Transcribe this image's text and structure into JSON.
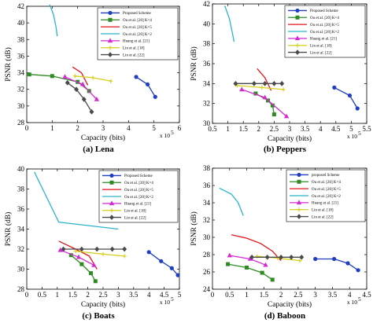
{
  "colors": {
    "proposed": "#1f3fbf",
    "ou_k4": "#2e8b22",
    "ou_k5": "#e0161b",
    "ou_k2": "#2bb5cc",
    "huang": "#d42ad4",
    "lin18": "#d6cf1c",
    "lin22": "#4a4a4a"
  },
  "chart_data": [
    {
      "type": "line",
      "caption_label": "(a)",
      "caption_name": "Lena",
      "xlabel": "Capacity (bits)",
      "ylabel": "PSNR (dB)",
      "x_multiplier": "x 10",
      "x_exponent": "5",
      "xlim": [
        0,
        6
      ],
      "ylim": [
        28,
        42
      ],
      "xticks": [
        0,
        1,
        2,
        3,
        4,
        5,
        6
      ],
      "yticks": [
        28,
        30,
        32,
        34,
        36,
        38,
        40,
        42
      ],
      "legend_position": "top-right",
      "series": [
        {
          "name": "Proposed Scheme",
          "color_key": "proposed",
          "marker": "circle",
          "x": [
            4.3,
            4.75,
            5.05
          ],
          "y": [
            33.5,
            32.6,
            31.1
          ]
        },
        {
          "name": "Ou et al. [20] K=4",
          "color_key": "ou_k4",
          "marker": "square",
          "x": [
            0.1,
            1.0,
            2.0,
            2.45
          ],
          "y": [
            33.8,
            33.6,
            32.9,
            31.8
          ]
        },
        {
          "name": "Ou et al. [20] K=5",
          "color_key": "ou_k5",
          "marker": "none",
          "x": [
            1.8,
            2.15,
            2.4
          ],
          "y": [
            34.7,
            34.0,
            32.5
          ]
        },
        {
          "name": "Ou et al. [20] K=2",
          "color_key": "ou_k2",
          "marker": "none",
          "x": [
            0.9,
            1.05,
            1.15,
            1.2
          ],
          "y": [
            42.2,
            41.0,
            39.5,
            38.4
          ]
        },
        {
          "name": "Huang et al. [21]",
          "color_key": "huang",
          "marker": "triangle",
          "x": [
            1.5,
            2.2,
            2.75
          ],
          "y": [
            33.5,
            32.6,
            30.8
          ]
        },
        {
          "name": "Lin et al. [18]",
          "color_key": "lin18",
          "marker": "plus",
          "x": [
            1.9,
            2.6,
            3.3
          ],
          "y": [
            33.6,
            33.4,
            33.0
          ]
        },
        {
          "name": "Lin et al. [22]",
          "color_key": "lin22",
          "marker": "diamond",
          "x": [
            1.6,
            1.95,
            2.25,
            2.55
          ],
          "y": [
            32.8,
            32.0,
            30.8,
            29.3
          ]
        }
      ]
    },
    {
      "type": "line",
      "caption_label": "(b)",
      "caption_name": "Peppers",
      "xlabel": "Capacity (bits)",
      "ylabel": "PSNR (dB)",
      "x_multiplier": "x 10",
      "x_exponent": "5",
      "xlim": [
        0.5,
        5.5
      ],
      "ylim": [
        30,
        42
      ],
      "xticks": [
        0.5,
        1,
        1.5,
        2,
        2.5,
        3,
        3.5,
        4,
        4.5,
        5,
        5.5
      ],
      "yticks": [
        30,
        32,
        34,
        36,
        38,
        40,
        42
      ],
      "legend_position": "top-right",
      "series": [
        {
          "name": "Proposed Scheme",
          "color_key": "proposed",
          "marker": "circle",
          "x": [
            4.45,
            4.95,
            5.2
          ],
          "y": [
            33.6,
            32.8,
            31.5
          ]
        },
        {
          "name": "Ou et al. [20] K=4",
          "color_key": "ou_k4",
          "marker": "square",
          "x": [
            1.9,
            2.3,
            2.45,
            2.5
          ],
          "y": [
            33.0,
            32.3,
            31.8,
            30.9
          ]
        },
        {
          "name": "Ou et al. [20] K=5",
          "color_key": "ou_k5",
          "marker": "none",
          "x": [
            1.95,
            2.2,
            2.4
          ],
          "y": [
            35.5,
            34.6,
            33.3
          ]
        },
        {
          "name": "Ou et al. [20] K=2",
          "color_key": "ou_k2",
          "marker": "none",
          "x": [
            0.9,
            1.05,
            1.15,
            1.2
          ],
          "y": [
            41.8,
            40.5,
            39.0,
            38.2
          ]
        },
        {
          "name": "Huang et al. [21]",
          "color_key": "huang",
          "marker": "triangle",
          "x": [
            1.45,
            2.2,
            2.9
          ],
          "y": [
            33.4,
            32.6,
            30.7
          ]
        },
        {
          "name": "Lin et al. [18]",
          "color_key": "lin18",
          "marker": "plus",
          "x": [
            1.3,
            2.1,
            2.8
          ],
          "y": [
            33.8,
            33.6,
            33.4
          ]
        },
        {
          "name": "Lin et al. [22]",
          "color_key": "lin22",
          "marker": "diamond",
          "x": [
            1.25,
            1.85,
            2.2,
            2.5,
            2.75
          ],
          "y": [
            34.0,
            34.0,
            34.0,
            34.0,
            34.0
          ]
        }
      ]
    },
    {
      "type": "line",
      "caption_label": "(c)",
      "caption_name": "Boats",
      "xlabel": "Capacity (bits)",
      "ylabel": "PSNR (dB)",
      "x_multiplier": "x 10",
      "x_exponent": "5",
      "xlim": [
        0,
        5
      ],
      "ylim": [
        28,
        40
      ],
      "xticks": [
        0,
        0.5,
        1,
        1.5,
        2,
        2.5,
        3,
        3.5,
        4,
        4.5,
        5
      ],
      "yticks": [
        28,
        30,
        32,
        34,
        36,
        38,
        40
      ],
      "legend_position": "top-right",
      "series": [
        {
          "name": "Proposed Scheme",
          "color_key": "proposed",
          "marker": "circle",
          "x": [
            4.0,
            4.4,
            4.75,
            4.95
          ],
          "y": [
            31.7,
            30.8,
            30.1,
            29.4
          ]
        },
        {
          "name": "Ou et al. [20] K=4",
          "color_key": "ou_k4",
          "marker": "square",
          "x": [
            1.45,
            1.8,
            2.1,
            2.25
          ],
          "y": [
            31.4,
            30.5,
            29.6,
            28.8
          ]
        },
        {
          "name": "Ou et al. [20] K=5",
          "color_key": "ou_k5",
          "marker": "none",
          "x": [
            1.05,
            1.6,
            2.05,
            2.3
          ],
          "y": [
            32.8,
            32.0,
            31.3,
            30.0
          ]
        },
        {
          "name": "Ou et al. [20] K=2",
          "color_key": "ou_k2",
          "marker": "none",
          "x": [
            0.25,
            0.6,
            1.05,
            3.0
          ],
          "y": [
            39.7,
            37.5,
            34.7,
            34.0
          ]
        },
        {
          "name": "Huang et al. [21]",
          "color_key": "huang",
          "marker": "triangle",
          "x": [
            1.1,
            1.7,
            2.2
          ],
          "y": [
            31.9,
            31.2,
            30.4
          ]
        },
        {
          "name": "Lin et al. [18]",
          "color_key": "lin18",
          "marker": "plus",
          "x": [
            1.6,
            2.5,
            3.2
          ],
          "y": [
            31.8,
            31.5,
            31.3
          ]
        },
        {
          "name": "Lin et al. [22]",
          "color_key": "lin22",
          "marker": "diamond",
          "x": [
            1.2,
            1.8,
            2.3,
            2.8,
            3.2
          ],
          "y": [
            32.0,
            32.0,
            32.0,
            32.0,
            32.0
          ]
        }
      ]
    },
    {
      "type": "line",
      "caption_label": "(d)",
      "caption_name": "Baboon",
      "xlabel": "Capacity (bits)",
      "ylabel": "PSNR (dB)",
      "x_multiplier": "x 10",
      "x_exponent": "5",
      "xlim": [
        0,
        4.5
      ],
      "ylim": [
        24,
        38
      ],
      "xticks": [
        0,
        0.5,
        1,
        1.5,
        2,
        2.5,
        3,
        3.5,
        4,
        4.5
      ],
      "yticks": [
        24,
        26,
        28,
        30,
        32,
        34,
        36,
        38
      ],
      "legend_position": "top-right",
      "series": [
        {
          "name": "proposed Scheme",
          "color_key": "proposed",
          "marker": "circle",
          "x": [
            3.0,
            3.55,
            3.95,
            4.25
          ],
          "y": [
            27.5,
            27.5,
            27.0,
            26.2
          ]
        },
        {
          "name": "Ou et al. [20] K=4",
          "color_key": "ou_k4",
          "marker": "square",
          "x": [
            0.45,
            1.0,
            1.45,
            1.75
          ],
          "y": [
            26.9,
            26.5,
            25.9,
            25.1
          ]
        },
        {
          "name": "Ou et al. [20] K=5",
          "color_key": "ou_k5",
          "marker": "none",
          "x": [
            0.55,
            1.0,
            1.4,
            1.75,
            2.0
          ],
          "y": [
            30.3,
            29.9,
            29.3,
            28.4,
            27.3
          ]
        },
        {
          "name": "Ou et al. [20] K=2",
          "color_key": "ou_k2",
          "marker": "none",
          "x": [
            0.2,
            0.55,
            0.75,
            0.9
          ],
          "y": [
            35.7,
            35.0,
            34.0,
            32.5
          ]
        },
        {
          "name": "Huang et al. [21]",
          "color_key": "huang",
          "marker": "triangle",
          "x": [
            0.5,
            1.1,
            1.55
          ],
          "y": [
            27.9,
            27.5,
            26.8
          ]
        },
        {
          "name": "Lin et al. [18]",
          "color_key": "lin18",
          "marker": "plus",
          "x": [
            1.3,
            1.9,
            2.55
          ],
          "y": [
            27.8,
            27.6,
            27.3
          ]
        },
        {
          "name": "Lin et al. [22]",
          "color_key": "lin22",
          "marker": "diamond",
          "x": [
            1.15,
            1.6,
            2.0,
            2.3,
            2.6
          ],
          "y": [
            27.7,
            27.7,
            27.7,
            27.7,
            27.7
          ]
        }
      ]
    }
  ]
}
